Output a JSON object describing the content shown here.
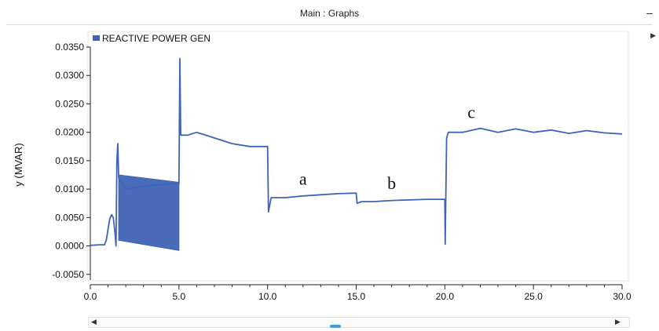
{
  "window": {
    "title": "Main : Graphs",
    "minimize_glyph": "–",
    "scroll_left_glyph": "◀",
    "scroll_right_glyph": "▶",
    "scroll_top_glyph": "▶"
  },
  "chart_data": {
    "type": "line",
    "title": "",
    "xlabel": "",
    "ylabel": "y (MVAR)",
    "xlim": [
      0,
      30
    ],
    "ylim": [
      -0.006,
      0.035
    ],
    "x_ticks": [
      "0.0",
      "5.0",
      "10.0",
      "15.0",
      "20.0",
      "25.0",
      "30.0"
    ],
    "y_ticks": [
      "0.0350",
      "0.0300",
      "0.0250",
      "0.0200",
      "0.0150",
      "0.0100",
      "0.0050",
      "0.0000",
      "-0.0050"
    ],
    "legend": {
      "position": "top-left",
      "entries": [
        "REACTIVE POWER GEN"
      ]
    },
    "series": [
      {
        "name": "REACTIVE POWER GEN",
        "color": "#3f63b5",
        "points": [
          [
            0.0,
            0.0001
          ],
          [
            0.5,
            0.0002
          ],
          [
            0.8,
            0.0002
          ],
          [
            0.9,
            0.001
          ],
          [
            1.0,
            0.003
          ],
          [
            1.1,
            0.0048
          ],
          [
            1.2,
            0.0055
          ],
          [
            1.3,
            0.005
          ],
          [
            1.4,
            0.002
          ],
          [
            1.45,
            0.0
          ],
          [
            1.5,
            0.015
          ],
          [
            1.55,
            0.018
          ],
          [
            1.6,
            0.012
          ],
          [
            2.0,
            0.01
          ],
          [
            3.0,
            0.0105
          ],
          [
            4.0,
            0.0108
          ],
          [
            5.0,
            0.011
          ],
          [
            5.05,
            0.033
          ],
          [
            5.1,
            0.0195
          ],
          [
            5.5,
            0.0195
          ],
          [
            6.0,
            0.02
          ],
          [
            7.0,
            0.019
          ],
          [
            8.0,
            0.018
          ],
          [
            9.0,
            0.0175
          ],
          [
            10.0,
            0.0175
          ],
          [
            10.05,
            0.006
          ],
          [
            10.2,
            0.0085
          ],
          [
            11.0,
            0.0085
          ],
          [
            12.0,
            0.0088
          ],
          [
            13.0,
            0.009
          ],
          [
            14.0,
            0.0092
          ],
          [
            15.0,
            0.0093
          ],
          [
            15.05,
            0.0075
          ],
          [
            15.3,
            0.0078
          ],
          [
            16.0,
            0.0078
          ],
          [
            17.0,
            0.008
          ],
          [
            18.0,
            0.0081
          ],
          [
            19.0,
            0.0082
          ],
          [
            20.0,
            0.0082
          ],
          [
            20.02,
            0.0003
          ],
          [
            20.1,
            0.019
          ],
          [
            20.2,
            0.02
          ],
          [
            21.0,
            0.02
          ],
          [
            22.0,
            0.0207
          ],
          [
            23.0,
            0.02
          ],
          [
            24.0,
            0.0206
          ],
          [
            25.0,
            0.02
          ],
          [
            26.0,
            0.0204
          ],
          [
            27.0,
            0.0198
          ],
          [
            28.0,
            0.0203
          ],
          [
            29.0,
            0.0199
          ],
          [
            30.0,
            0.0197
          ]
        ],
        "oscillation_band": {
          "x_range": [
            1.6,
            5.0
          ],
          "upper": [
            0.0125,
            0.0112
          ],
          "lower": [
            0.001,
            -0.0008
          ]
        }
      }
    ],
    "annotations": [
      {
        "text": "a",
        "x": 12.0,
        "y": 0.0108
      },
      {
        "text": "b",
        "x": 17.0,
        "y": 0.01
      },
      {
        "text": "c",
        "x": 21.5,
        "y": 0.0225
      }
    ]
  }
}
